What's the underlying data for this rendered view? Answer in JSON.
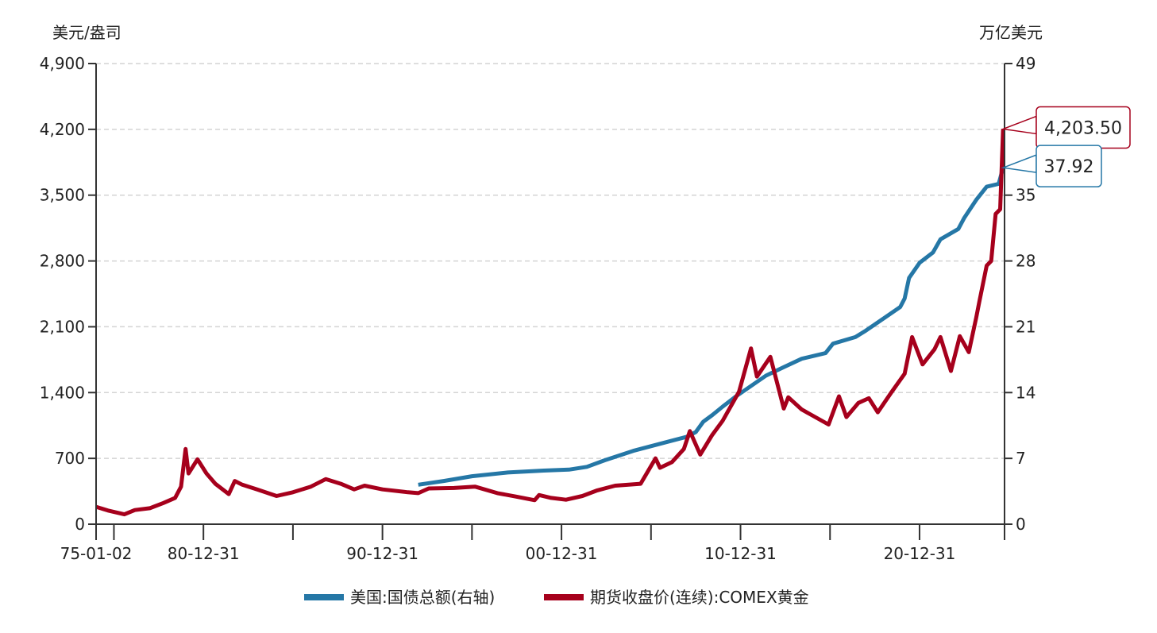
{
  "chart_data": {
    "type": "line",
    "left_axis_unit": "美元/盎司",
    "right_axis_unit": "万亿美元",
    "y_left": {
      "range": [
        0,
        4900
      ],
      "ticks": [
        "0",
        "700",
        "1,400",
        "2,100",
        "2,800",
        "3,500",
        "4,200",
        "4,900"
      ],
      "tick_values": [
        0,
        700,
        1400,
        2100,
        2800,
        3500,
        4200,
        4900
      ]
    },
    "y_right": {
      "range": [
        0,
        49
      ],
      "ticks": [
        "0",
        "7",
        "14",
        "21",
        "28",
        "35",
        "49"
      ],
      "tick_values": [
        0,
        7,
        14,
        21,
        28,
        35,
        49
      ]
    },
    "x": {
      "range": [
        "1975-01-02",
        "2025-09-30"
      ],
      "ticks": [
        {
          "date": "1975-01-02",
          "label": "75-01-02"
        },
        {
          "date": "1975-12-31",
          "label": ""
        },
        {
          "date": "1980-12-31",
          "label": "80-12-31"
        },
        {
          "date": "1985-12-31",
          "label": ""
        },
        {
          "date": "1990-12-31",
          "label": "90-12-31"
        },
        {
          "date": "1995-12-31",
          "label": ""
        },
        {
          "date": "2000-12-31",
          "label": "00-12-31"
        },
        {
          "date": "2005-12-31",
          "label": ""
        },
        {
          "date": "2010-12-31",
          "label": "10-12-31"
        },
        {
          "date": "2015-12-31",
          "label": ""
        },
        {
          "date": "2020-12-31",
          "label": "20-12-31"
        },
        {
          "date": "2025-09-30",
          "label": ""
        }
      ]
    },
    "grid": "horizontal dashed",
    "legend_placement": "bottom",
    "series": [
      {
        "name": "美国:国债总额(右轴)",
        "axis": "right",
        "color": "#2577a6",
        "end_label": "37.92",
        "points": [
          [
            "1993-01",
            4.2
          ],
          [
            "1994-06",
            4.6
          ],
          [
            "1996-01",
            5.1
          ],
          [
            "1998-01",
            5.5
          ],
          [
            "2000-01",
            5.7
          ],
          [
            "2001-06",
            5.8
          ],
          [
            "2002-06",
            6.1
          ],
          [
            "2003-06",
            6.8
          ],
          [
            "2005-01",
            7.8
          ],
          [
            "2007-01",
            8.8
          ],
          [
            "2008-01",
            9.3
          ],
          [
            "2008-07",
            9.8
          ],
          [
            "2008-12",
            10.9
          ],
          [
            "2009-06",
            11.6
          ],
          [
            "2010-01",
            12.5
          ],
          [
            "2010-10",
            13.6
          ],
          [
            "2011-08",
            14.7
          ],
          [
            "2012-06",
            15.8
          ],
          [
            "2013-06",
            16.7
          ],
          [
            "2014-06",
            17.6
          ],
          [
            "2015-10",
            18.2
          ],
          [
            "2016-03",
            19.2
          ],
          [
            "2017-06",
            19.9
          ],
          [
            "2018-01",
            20.6
          ],
          [
            "2019-01",
            21.9
          ],
          [
            "2019-12",
            23.1
          ],
          [
            "2020-03",
            24.0
          ],
          [
            "2020-06",
            26.2
          ],
          [
            "2021-01",
            27.8
          ],
          [
            "2021-10",
            28.9
          ],
          [
            "2022-03",
            30.3
          ],
          [
            "2023-03",
            31.4
          ],
          [
            "2023-07",
            32.6
          ],
          [
            "2024-03",
            34.5
          ],
          [
            "2024-10",
            35.9
          ],
          [
            "2025-06",
            36.2
          ],
          [
            "2025-09",
            37.92
          ]
        ]
      },
      {
        "name": "期货收盘价(连续):COMEX黄金",
        "axis": "left",
        "color": "#a6001c",
        "end_label": "4,203.50",
        "points": [
          [
            "1975-01",
            185
          ],
          [
            "1975-09",
            145
          ],
          [
            "1976-08",
            105
          ],
          [
            "1977-03",
            150
          ],
          [
            "1978-01",
            170
          ],
          [
            "1978-10",
            225
          ],
          [
            "1979-06",
            280
          ],
          [
            "1979-10",
            400
          ],
          [
            "1980-01",
            800
          ],
          [
            "1980-03",
            540
          ],
          [
            "1980-09",
            690
          ],
          [
            "1981-03",
            540
          ],
          [
            "1981-09",
            430
          ],
          [
            "1982-06",
            320
          ],
          [
            "1982-10",
            460
          ],
          [
            "1983-03",
            420
          ],
          [
            "1984-01",
            370
          ],
          [
            "1985-02",
            300
          ],
          [
            "1986-01",
            340
          ],
          [
            "1987-01",
            400
          ],
          [
            "1987-11",
            480
          ],
          [
            "1988-09",
            430
          ],
          [
            "1989-06",
            370
          ],
          [
            "1990-01",
            410
          ],
          [
            "1991-01",
            370
          ],
          [
            "1992-06",
            340
          ],
          [
            "1993-01",
            330
          ],
          [
            "1993-08",
            380
          ],
          [
            "1995-01",
            385
          ],
          [
            "1996-03",
            400
          ],
          [
            "1997-06",
            330
          ],
          [
            "1998-06",
            295
          ],
          [
            "1999-07",
            255
          ],
          [
            "1999-10",
            310
          ],
          [
            "2000-06",
            280
          ],
          [
            "2001-04",
            260
          ],
          [
            "2002-03",
            300
          ],
          [
            "2003-01",
            360
          ],
          [
            "2004-01",
            410
          ],
          [
            "2005-06",
            430
          ],
          [
            "2006-04",
            700
          ],
          [
            "2006-07",
            600
          ],
          [
            "2007-03",
            660
          ],
          [
            "2007-11",
            800
          ],
          [
            "2008-03",
            990
          ],
          [
            "2008-10",
            740
          ],
          [
            "2009-06",
            950
          ],
          [
            "2010-01",
            1100
          ],
          [
            "2010-12",
            1410
          ],
          [
            "2011-08",
            1870
          ],
          [
            "2011-12",
            1570
          ],
          [
            "2012-09",
            1780
          ],
          [
            "2013-06",
            1230
          ],
          [
            "2013-09",
            1350
          ],
          [
            "2014-06",
            1220
          ],
          [
            "2015-12",
            1060
          ],
          [
            "2016-07",
            1360
          ],
          [
            "2016-12",
            1140
          ],
          [
            "2017-08",
            1290
          ],
          [
            "2018-03",
            1340
          ],
          [
            "2018-09",
            1190
          ],
          [
            "2019-06",
            1400
          ],
          [
            "2020-03",
            1600
          ],
          [
            "2020-08",
            1990
          ],
          [
            "2021-03",
            1700
          ],
          [
            "2021-11",
            1860
          ],
          [
            "2022-03",
            1990
          ],
          [
            "2022-10",
            1630
          ],
          [
            "2023-04",
            2000
          ],
          [
            "2023-10",
            1830
          ],
          [
            "2024-03",
            2200
          ],
          [
            "2024-05",
            2360
          ],
          [
            "2024-10",
            2750
          ],
          [
            "2025-01",
            2800
          ],
          [
            "2025-04",
            3300
          ],
          [
            "2025-07",
            3350
          ],
          [
            "2025-09",
            4203.5
          ]
        ]
      }
    ]
  }
}
